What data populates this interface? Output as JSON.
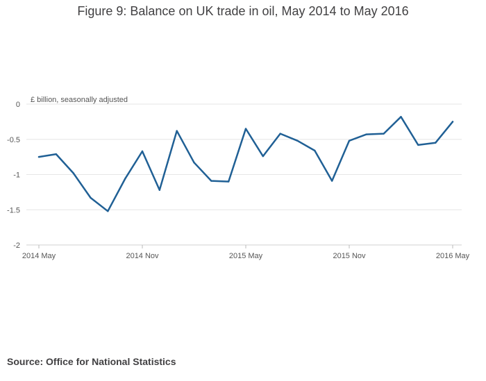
{
  "title": "Figure 9: Balance on UK trade in oil, May 2014 to May 2016",
  "source": "Source: Office for National Statistics",
  "colors": {
    "series": "#206095",
    "grid": "#e6e6e6",
    "axis": "#d0d0d0"
  },
  "chart_data": {
    "type": "line",
    "title": "Figure 9: Balance on UK trade in oil, May 2014 to May 2016",
    "ylabel": "£ billion, seasonally adjusted",
    "xlabel": "",
    "ylim": [
      -2,
      0
    ],
    "yticks": [
      "0",
      "-0.5",
      "-1",
      "-1.5",
      "-2"
    ],
    "ytick_values": [
      0,
      -0.5,
      -1,
      -1.5,
      -2
    ],
    "xticks": [
      "2014 May",
      "2014 Nov",
      "2015 May",
      "2015 Nov",
      "2016 May"
    ],
    "xtick_index": [
      0,
      6,
      12,
      18,
      24
    ],
    "grid": true,
    "x": [
      "2014 May",
      "2014 Jun",
      "2014 Jul",
      "2014 Aug",
      "2014 Sep",
      "2014 Oct",
      "2014 Nov",
      "2014 Dec",
      "2015 Jan",
      "2015 Feb",
      "2015 Mar",
      "2015 Apr",
      "2015 May",
      "2015 Jun",
      "2015 Jul",
      "2015 Aug",
      "2015 Sep",
      "2015 Oct",
      "2015 Nov",
      "2015 Dec",
      "2016 Jan",
      "2016 Feb",
      "2016 Mar",
      "2016 Apr",
      "2016 May"
    ],
    "values": [
      -0.75,
      -0.71,
      -0.98,
      -1.33,
      -1.52,
      -1.06,
      -0.67,
      -1.22,
      -0.38,
      -0.83,
      -1.09,
      -1.1,
      -0.35,
      -0.74,
      -0.42,
      -0.52,
      -0.66,
      -1.09,
      -0.52,
      -0.43,
      -0.42,
      -0.18,
      -0.58,
      -0.55,
      -0.25
    ]
  }
}
